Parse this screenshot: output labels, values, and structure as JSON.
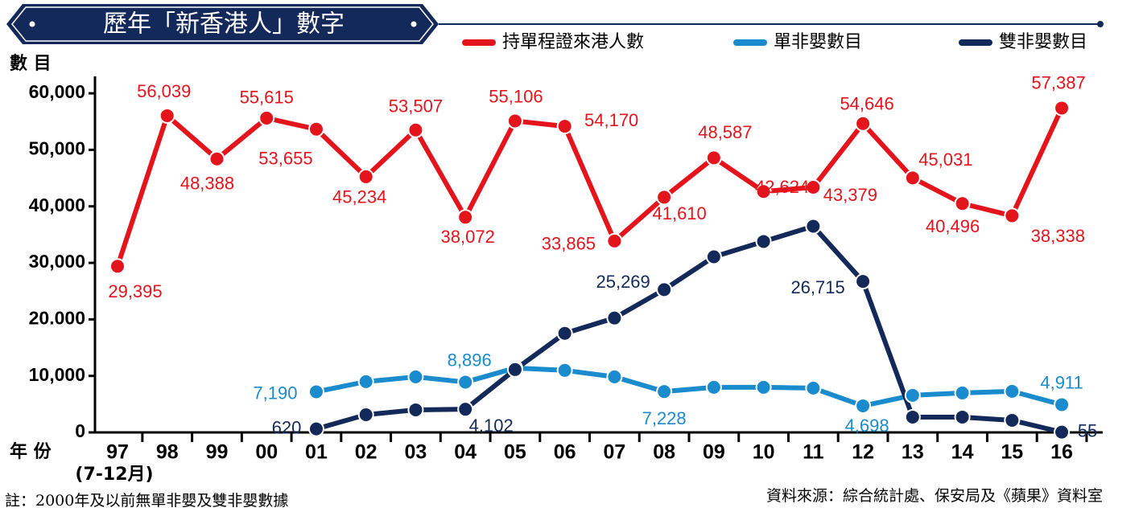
{
  "chart_data": {
    "type": "line",
    "title": "歷年「新香港人」數字",
    "y_label": "數 目",
    "x_label": "年 份",
    "category_note": "(7-12月)",
    "note": "註：2000年及以前無單非嬰及雙非嬰數據",
    "source": "資料來源：綜合統計處、保安局及《蘋果》資料室",
    "categories": [
      "97",
      "98",
      "99",
      "00",
      "01",
      "02",
      "03",
      "04",
      "05",
      "06",
      "07",
      "08",
      "09",
      "10",
      "11",
      "12",
      "13",
      "14",
      "15",
      "16"
    ],
    "ylim": [
      0,
      63000
    ],
    "yticks": [
      0,
      {
        "value": 10000,
        "label": "10,000"
      },
      {
        "value": 20000,
        "label": "20.000"
      },
      {
        "value": 30000,
        "label": "30,000"
      },
      {
        "value": 40000,
        "label": "40,000"
      },
      {
        "value": 50000,
        "label": "50,000"
      },
      {
        "value": 60000,
        "label": "60,000"
      }
    ],
    "series": [
      {
        "name": "持單程證來港人數",
        "color": "#e3141c",
        "values": [
          29395,
          56039,
          48388,
          55615,
          53655,
          45234,
          53507,
          38072,
          55106,
          54170,
          33865,
          41610,
          48587,
          42624,
          43379,
          54646,
          45031,
          40496,
          38338,
          57387
        ],
        "value_labels": [
          "29,395",
          "56,039",
          "48,388",
          "55,615",
          "53,655",
          "45,234",
          "53,507",
          "38,072",
          "55,106",
          "54,170",
          "33,865",
          "41,610",
          "48,587",
          "42,624",
          "43,379",
          "54,646",
          "45,031",
          "40,496",
          "38,338",
          "57,387"
        ]
      },
      {
        "name": "單非嬰數目",
        "color": "#1a8bcc",
        "values": [
          null,
          null,
          null,
          null,
          7190,
          8980,
          9830,
          8896,
          11400,
          10980,
          9830,
          7228,
          7980,
          7980,
          7840,
          4698,
          6560,
          6980,
          7270,
          4911
        ],
        "value_labels": [
          null,
          null,
          null,
          null,
          "7,190",
          null,
          null,
          "8,896",
          null,
          null,
          null,
          "7,228",
          null,
          null,
          null,
          "4,698",
          null,
          null,
          null,
          "4,911"
        ]
      },
      {
        "name": "雙非嬰數目",
        "color": "#13295a",
        "values": [
          null,
          null,
          null,
          null,
          620,
          3130,
          3990,
          4102,
          11120,
          17530,
          20240,
          25269,
          31070,
          33780,
          36480,
          26715,
          2710,
          2710,
          2140,
          55
        ],
        "value_labels": [
          null,
          null,
          null,
          null,
          "620",
          null,
          null,
          "4,102",
          null,
          null,
          null,
          "25,269",
          null,
          null,
          null,
          "26,715",
          null,
          null,
          null,
          "55"
        ]
      }
    ]
  }
}
